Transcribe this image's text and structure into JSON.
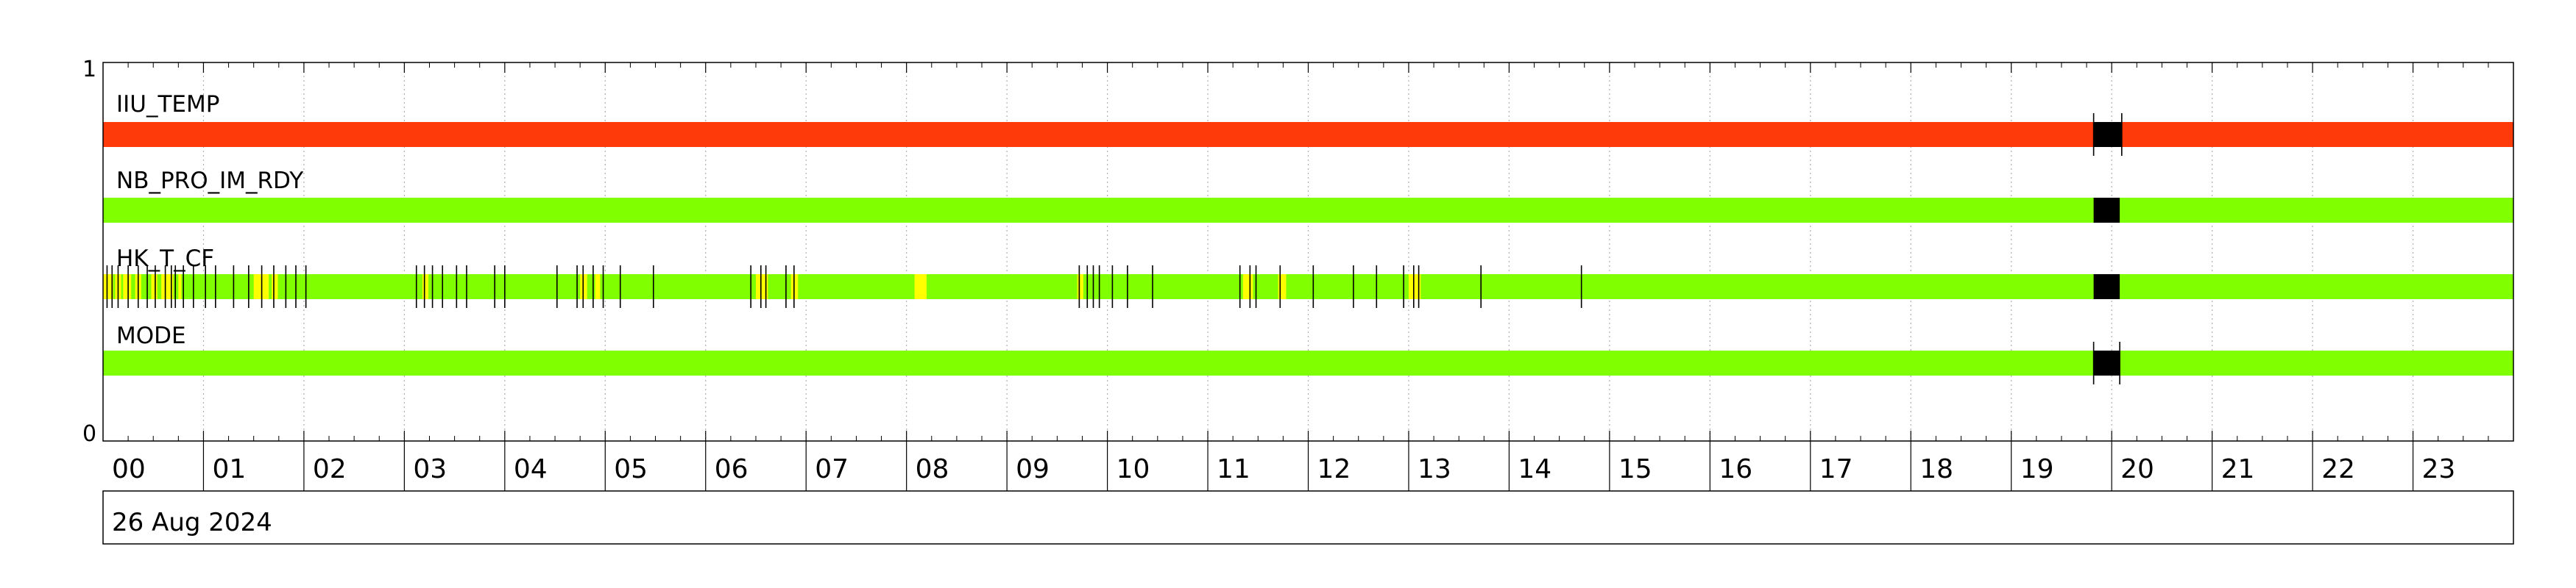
{
  "chart_data": {
    "type": "timeline",
    "y_axis": {
      "ylim": [
        0,
        1
      ],
      "tick_labels": [
        "1",
        "0"
      ]
    },
    "x_axis": {
      "unit": "hour",
      "xlim": [
        0,
        24
      ],
      "tick_labels": [
        "00",
        "01",
        "02",
        "03",
        "04",
        "05",
        "06",
        "07",
        "08",
        "09",
        "10",
        "11",
        "12",
        "13",
        "14",
        "15",
        "16",
        "17",
        "18",
        "19",
        "20",
        "21",
        "22",
        "23"
      ]
    },
    "date_label": "26 Aug 2024",
    "grid": true,
    "colors": {
      "red": "#ff3a0a",
      "green": "#80ff00",
      "yellow": "#ffff00",
      "black": "#000000"
    },
    "series": [
      {
        "name": "IIU_TEMP",
        "base_color": "red",
        "segments": [
          {
            "start": 19.82,
            "end": 20.1,
            "color": "black"
          }
        ],
        "tick_marks": [
          19.82,
          20.1
        ]
      },
      {
        "name": "NB_PRO_IM_RDY",
        "base_color": "green",
        "segments": [
          {
            "start": 19.82,
            "end": 20.08,
            "color": "black"
          }
        ],
        "tick_marks": []
      },
      {
        "name": "HK_T_CF",
        "base_color": "green",
        "segments": [
          {
            "start": 0.0,
            "end": 0.1,
            "color": "yellow"
          },
          {
            "start": 0.12,
            "end": 0.18,
            "color": "yellow"
          },
          {
            "start": 0.2,
            "end": 0.28,
            "color": "yellow"
          },
          {
            "start": 0.32,
            "end": 0.38,
            "color": "yellow"
          },
          {
            "start": 0.48,
            "end": 0.54,
            "color": "yellow"
          },
          {
            "start": 0.58,
            "end": 0.7,
            "color": "yellow"
          },
          {
            "start": 0.75,
            "end": 0.78,
            "color": "yellow"
          },
          {
            "start": 1.5,
            "end": 1.65,
            "color": "yellow"
          },
          {
            "start": 1.68,
            "end": 1.74,
            "color": "yellow"
          },
          {
            "start": 3.18,
            "end": 3.24,
            "color": "yellow"
          },
          {
            "start": 4.75,
            "end": 4.82,
            "color": "yellow"
          },
          {
            "start": 4.9,
            "end": 4.95,
            "color": "yellow"
          },
          {
            "start": 6.5,
            "end": 6.62,
            "color": "yellow"
          },
          {
            "start": 6.85,
            "end": 6.92,
            "color": "yellow"
          },
          {
            "start": 8.08,
            "end": 8.2,
            "color": "yellow"
          },
          {
            "start": 9.7,
            "end": 9.76,
            "color": "yellow"
          },
          {
            "start": 11.35,
            "end": 11.45,
            "color": "yellow"
          },
          {
            "start": 11.7,
            "end": 11.78,
            "color": "yellow"
          },
          {
            "start": 13.0,
            "end": 13.12,
            "color": "yellow"
          },
          {
            "start": 19.82,
            "end": 20.08,
            "color": "black"
          }
        ],
        "tick_marks": [
          0.04,
          0.09,
          0.15,
          0.25,
          0.35,
          0.44,
          0.52,
          0.62,
          0.68,
          0.72,
          0.8,
          0.9,
          1.02,
          1.12,
          1.3,
          1.45,
          1.58,
          1.7,
          1.82,
          1.92,
          2.02,
          3.12,
          3.2,
          3.28,
          3.38,
          3.52,
          3.62,
          3.9,
          4.0,
          4.52,
          4.72,
          4.78,
          4.88,
          4.98,
          5.15,
          5.48,
          6.45,
          6.55,
          6.6,
          6.8,
          6.88,
          9.72,
          9.8,
          9.86,
          9.92,
          10.05,
          10.2,
          10.45,
          11.32,
          11.42,
          11.48,
          11.72,
          12.05,
          12.45,
          12.68,
          12.95,
          13.05,
          13.1,
          13.72,
          14.72
        ]
      },
      {
        "name": "MODE",
        "base_color": "green",
        "segments": [
          {
            "start": 19.82,
            "end": 20.08,
            "color": "black"
          }
        ],
        "tick_marks": [
          19.82,
          20.08
        ]
      }
    ]
  }
}
